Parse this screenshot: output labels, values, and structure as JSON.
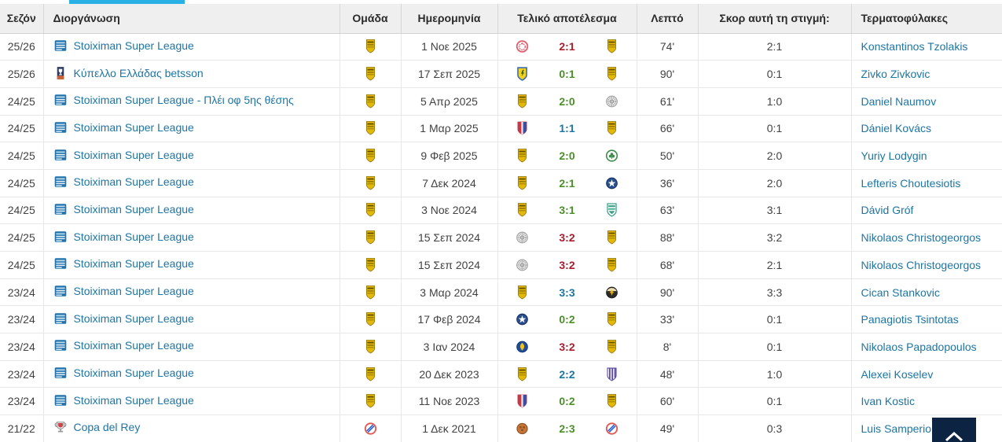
{
  "colors": {
    "tab_indicator": "#29b1e6",
    "link": "#1d75a3",
    "result": {
      "win": "#4b8f29",
      "loss": "#a81c2c",
      "draw": "#1d75a3"
    },
    "scroll_button_bg": "#0d2342",
    "header_bg": "#efefef"
  },
  "table": {
    "headers": {
      "season": "Σεζόν",
      "competition": "Διοργάνωση",
      "team": "Ομάδα",
      "date": "Ημερομηνία",
      "result": "Τελικό αποτέλεσμα",
      "minute": "Λεπτό",
      "score_now": "Σκορ αυτή τη στιγμή:",
      "goalkeepers": "Τερματοφύλακες"
    },
    "rows": [
      {
        "season": "25/26",
        "competition": "Stoiximan Super League",
        "comp_icon": "league",
        "team_icon": "gold-shield",
        "date": "1 Νοε 2025",
        "home_icon": "olympiacos",
        "score": "2:1",
        "result": "loss",
        "away_icon": "gold-shield",
        "minute": "74'",
        "score_now": "2:1",
        "goalkeeper": "Konstantinos Tzolakis"
      },
      {
        "season": "25/26",
        "competition": "Κύπελλο Ελλάδας betsson",
        "comp_icon": "greek-cup",
        "team_icon": "gold-shield",
        "date": "17 Σεπ 2025",
        "home_icon": "panetolikos",
        "score": "0:1",
        "result": "win",
        "away_icon": "gold-shield",
        "minute": "90'",
        "score_now": "0:1",
        "goalkeeper": "Zivko Zivkovic"
      },
      {
        "season": "24/25",
        "competition": "Stoiximan Super League - Πλέι οφ 5ης θέσης",
        "comp_icon": "league",
        "team_icon": "gold-shield",
        "date": "5 Απρ 2025",
        "home_icon": "gold-shield",
        "score": "2:0",
        "result": "win",
        "away_icon": "gray-club",
        "minute": "61'",
        "score_now": "1:0",
        "goalkeeper": "Daniel Naumov"
      },
      {
        "season": "24/25",
        "competition": "Stoiximan Super League",
        "comp_icon": "league",
        "team_icon": "gold-shield",
        "date": "1 Μαρ 2025",
        "home_icon": "red-blue-club",
        "score": "1:1",
        "result": "draw",
        "away_icon": "gold-shield",
        "minute": "66'",
        "score_now": "0:1",
        "goalkeeper": "Dániel Kovács"
      },
      {
        "season": "24/25",
        "competition": "Stoiximan Super League",
        "comp_icon": "league",
        "team_icon": "gold-shield",
        "date": "9 Φεβ 2025",
        "home_icon": "gold-shield",
        "score": "2:0",
        "result": "win",
        "away_icon": "panathinaikos",
        "minute": "50'",
        "score_now": "2:0",
        "goalkeeper": "Yuriy Lodygin"
      },
      {
        "season": "24/25",
        "competition": "Stoiximan Super League",
        "comp_icon": "league",
        "team_icon": "gold-shield",
        "date": "7 Δεκ 2024",
        "home_icon": "gold-shield",
        "score": "2:1",
        "result": "win",
        "away_icon": "atromitos",
        "minute": "36'",
        "score_now": "2:0",
        "goalkeeper": "Lefteris Choutesiotis"
      },
      {
        "season": "24/25",
        "competition": "Stoiximan Super League",
        "comp_icon": "league",
        "team_icon": "gold-shield",
        "date": "3 Νοε 2024",
        "home_icon": "gold-shield",
        "score": "3:1",
        "result": "win",
        "away_icon": "teal-club",
        "minute": "63'",
        "score_now": "3:1",
        "goalkeeper": "Dávid Gróf"
      },
      {
        "season": "24/25",
        "competition": "Stoiximan Super League",
        "comp_icon": "league",
        "team_icon": "gold-shield",
        "date": "15 Σεπ 2024",
        "home_icon": "gray-club",
        "score": "3:2",
        "result": "loss",
        "away_icon": "gold-shield",
        "minute": "88'",
        "score_now": "3:2",
        "goalkeeper": "Nikolaos Christogeorgos"
      },
      {
        "season": "24/25",
        "competition": "Stoiximan Super League",
        "comp_icon": "league",
        "team_icon": "gold-shield",
        "date": "15 Σεπ 2024",
        "home_icon": "gray-club",
        "score": "3:2",
        "result": "loss",
        "away_icon": "gold-shield",
        "minute": "68'",
        "score_now": "2:1",
        "goalkeeper": "Nikolaos Christogeorgos"
      },
      {
        "season": "23/24",
        "competition": "Stoiximan Super League",
        "comp_icon": "league",
        "team_icon": "gold-shield",
        "date": "3 Μαρ 2024",
        "home_icon": "gold-shield",
        "score": "3:3",
        "result": "draw",
        "away_icon": "aek-round",
        "minute": "90'",
        "score_now": "3:3",
        "goalkeeper": "Cican Stankovic"
      },
      {
        "season": "23/24",
        "competition": "Stoiximan Super League",
        "comp_icon": "league",
        "team_icon": "gold-shield",
        "date": "17 Φεβ 2024",
        "home_icon": "atromitos",
        "score": "0:2",
        "result": "win",
        "away_icon": "gold-shield",
        "minute": "33'",
        "score_now": "0:1",
        "goalkeeper": "Panagiotis Tsintotas"
      },
      {
        "season": "23/24",
        "competition": "Stoiximan Super League",
        "comp_icon": "league",
        "team_icon": "gold-shield",
        "date": "3 Ιαν 2024",
        "home_icon": "asteras",
        "score": "3:2",
        "result": "loss",
        "away_icon": "gold-shield",
        "minute": "8'",
        "score_now": "0:1",
        "goalkeeper": "Nikolaos Papadopoulos"
      },
      {
        "season": "23/24",
        "competition": "Stoiximan Super League",
        "comp_icon": "league",
        "team_icon": "gold-shield",
        "date": "20 Δεκ 2023",
        "home_icon": "gold-shield",
        "score": "2:2",
        "result": "draw",
        "away_icon": "purple-club",
        "minute": "48'",
        "score_now": "1:0",
        "goalkeeper": "Alexei Koselev"
      },
      {
        "season": "23/24",
        "competition": "Stoiximan Super League",
        "comp_icon": "league",
        "team_icon": "gold-shield",
        "date": "11 Νοε 2023",
        "home_icon": "red-blue-club",
        "score": "0:2",
        "result": "win",
        "away_icon": "gold-shield",
        "minute": "60'",
        "score_now": "0:1",
        "goalkeeper": "Ivan Kostic"
      },
      {
        "season": "21/22",
        "competition": "Copa del Rey",
        "comp_icon": "copa-del-rey",
        "team_icon": "espanyol",
        "date": "1 Δεκ 2021",
        "home_icon": "brown-club",
        "score": "2:3",
        "result": "win",
        "away_icon": "espanyol",
        "minute": "49'",
        "score_now": "0:3",
        "goalkeeper": "Luis Samperio"
      }
    ]
  }
}
